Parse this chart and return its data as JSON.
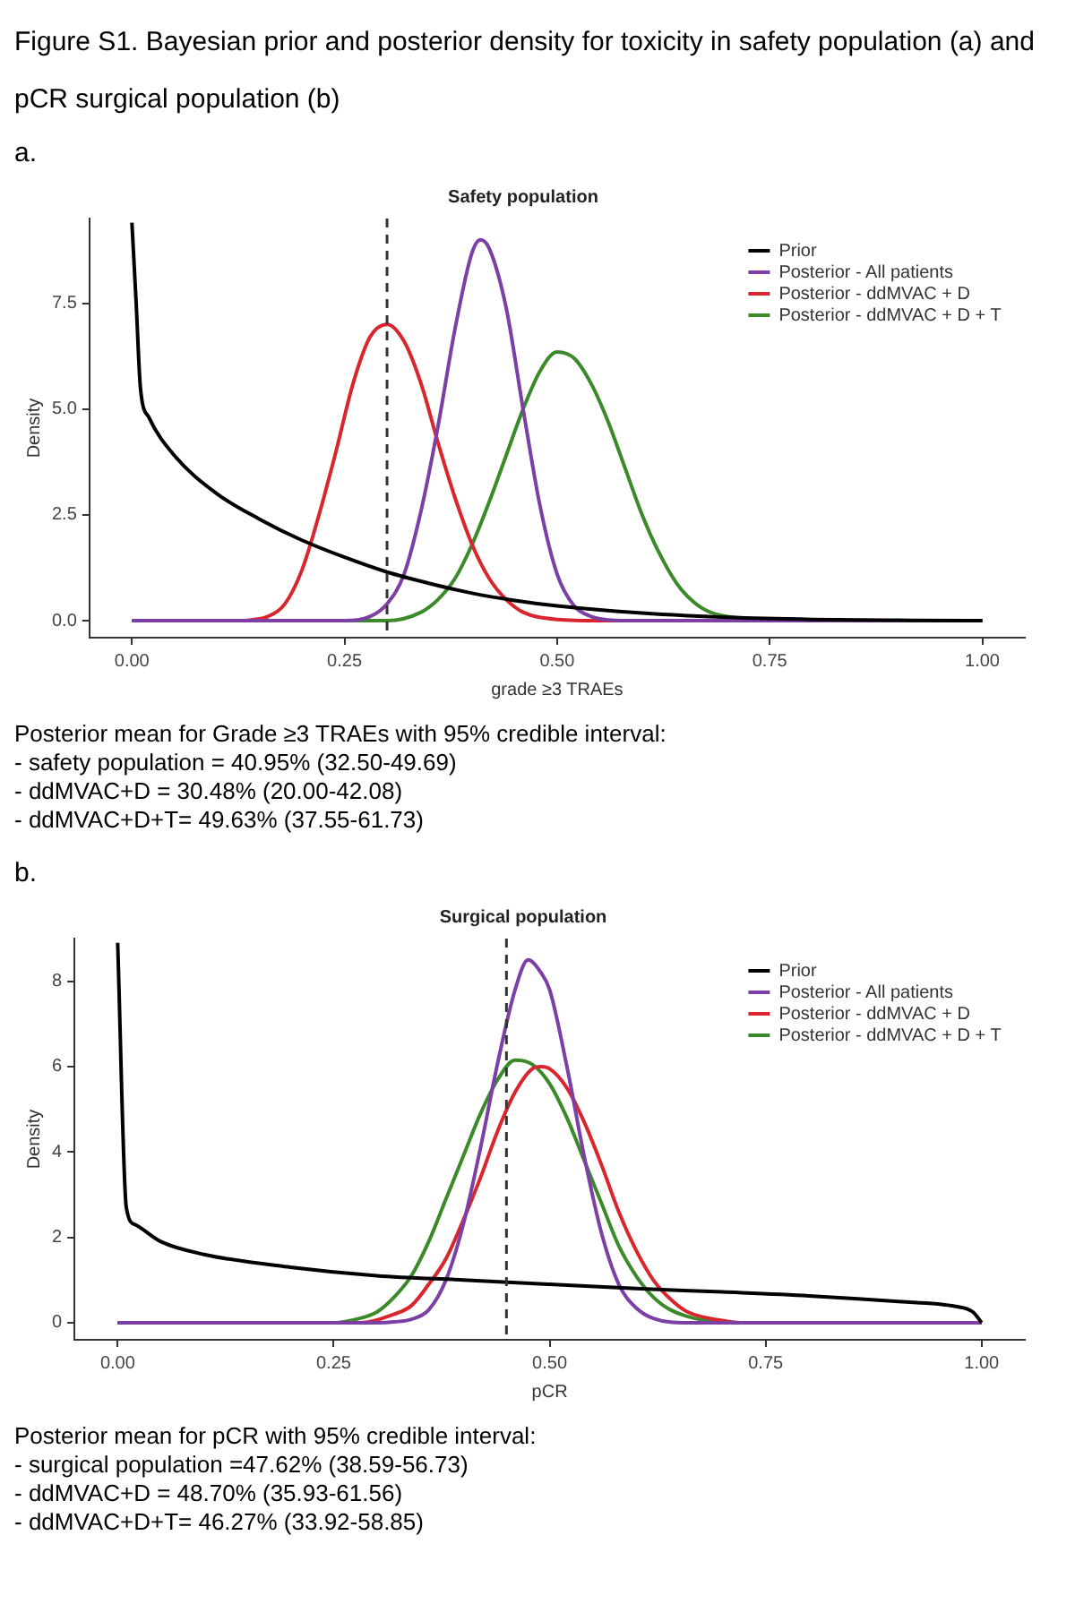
{
  "chart_data": [
    {
      "type": "line",
      "title": "Safety population",
      "xlabel": "grade ≥3 TRAEs",
      "ylabel": "Density",
      "xlim": [
        -0.05,
        1.05
      ],
      "ylim": [
        -0.4,
        9.5
      ],
      "xticks": [
        {
          "value": 0,
          "label": "0.00"
        },
        {
          "value": 0.25,
          "label": "0.25"
        },
        {
          "value": 0.5,
          "label": "0.50"
        },
        {
          "value": 0.75,
          "label": "0.75"
        },
        {
          "value": 1,
          "label": "1.00"
        }
      ],
      "yticks": [
        {
          "value": 0,
          "label": "0.0"
        },
        {
          "value": 2.5,
          "label": "2.5"
        },
        {
          "value": 5,
          "label": "5.0"
        },
        {
          "value": 7.5,
          "label": "7.5"
        }
      ],
      "grid": false,
      "legend": "top right",
      "marker": "none",
      "line_style": "solid",
      "ref_lines": [
        {
          "axis": "x",
          "value": 0.3,
          "line_style": "dashed",
          "color": "#333333"
        }
      ],
      "series": [
        {
          "name": "Prior",
          "color": "#000000",
          "x": [
            0,
            0.005,
            0.01,
            0.02,
            0.05,
            0.1,
            0.15,
            0.2,
            0.25,
            0.3,
            0.35,
            0.4,
            0.45,
            0.5,
            0.6,
            0.7,
            0.8,
            0.9,
            1
          ],
          "values": [
            9.4,
            7.5,
            5.5,
            4.8,
            3.9,
            3.0,
            2.4,
            1.9,
            1.5,
            1.15,
            0.88,
            0.65,
            0.48,
            0.35,
            0.18,
            0.08,
            0.03,
            0.01,
            0
          ]
        },
        {
          "name": "Posterior - All patients",
          "color": "#7b3fa6",
          "x": [
            0,
            0.25,
            0.28,
            0.3,
            0.32,
            0.34,
            0.36,
            0.38,
            0.4,
            0.41,
            0.42,
            0.44,
            0.46,
            0.48,
            0.5,
            0.52,
            0.54,
            0.56,
            0.6,
            1
          ],
          "values": [
            0,
            0,
            0.1,
            0.4,
            1.1,
            2.6,
            4.6,
            6.9,
            8.7,
            9.0,
            8.8,
            7.4,
            5.0,
            2.7,
            1.1,
            0.35,
            0.1,
            0.02,
            0,
            0
          ]
        },
        {
          "name": "Posterior - ddMVAC + D",
          "color": "#d9262e",
          "x": [
            0,
            0.12,
            0.14,
            0.16,
            0.18,
            0.2,
            0.22,
            0.24,
            0.26,
            0.28,
            0.3,
            0.32,
            0.34,
            0.36,
            0.38,
            0.4,
            0.42,
            0.44,
            0.46,
            0.5,
            0.55,
            1
          ],
          "values": [
            0,
            0,
            0.02,
            0.1,
            0.4,
            1.2,
            2.5,
            4.0,
            5.6,
            6.7,
            7.0,
            6.6,
            5.6,
            4.2,
            2.9,
            1.8,
            1.0,
            0.5,
            0.2,
            0.03,
            0,
            0
          ]
        },
        {
          "name": "Posterior - ddMVAC + D + T",
          "color": "#3a8a2a",
          "x": [
            0,
            0.3,
            0.34,
            0.36,
            0.38,
            0.4,
            0.42,
            0.44,
            0.46,
            0.48,
            0.5,
            0.52,
            0.54,
            0.56,
            0.58,
            0.6,
            0.62,
            0.64,
            0.66,
            0.68,
            0.72,
            0.76,
            1
          ],
          "values": [
            0,
            0,
            0.2,
            0.5,
            1.0,
            1.8,
            2.8,
            3.9,
            5.0,
            5.9,
            6.35,
            6.2,
            5.6,
            4.7,
            3.6,
            2.5,
            1.6,
            0.9,
            0.45,
            0.2,
            0.05,
            0,
            0
          ]
        }
      ],
      "annotations": [
        "Figure S1. Bayesian prior and posterior density for toxicity in safety population (a) and pCR surgical population (b)",
        "a.",
        "Posterior mean for Grade ≥3 TRAEs with 95% credible interval:",
        "- safety population = 40.95% (32.50-49.69)",
        "- ddMVAC+D = 30.48% (20.00-42.08)",
        "- ddMVAC+D+T= 49.63% (37.55-61.73)"
      ]
    },
    {
      "type": "line",
      "title": "Surgical population",
      "xlabel": "pCR",
      "ylabel": "Density",
      "xlim": [
        -0.05,
        1.05
      ],
      "ylim": [
        -0.4,
        9
      ],
      "xticks": [
        {
          "value": 0,
          "label": "0.00"
        },
        {
          "value": 0.25,
          "label": "0.25"
        },
        {
          "value": 0.5,
          "label": "0.50"
        },
        {
          "value": 0.75,
          "label": "0.75"
        },
        {
          "value": 1,
          "label": "1.00"
        }
      ],
      "yticks": [
        0,
        2,
        4,
        6,
        8
      ],
      "grid": false,
      "legend": "top right",
      "marker": "none",
      "line_style": "solid",
      "ref_lines": [
        {
          "axis": "x",
          "value": 0.45,
          "line_style": "dashed",
          "color": "#333333"
        }
      ],
      "series": [
        {
          "name": "Prior",
          "color": "#000000",
          "x": [
            0,
            0.01,
            0.02,
            0.05,
            0.1,
            0.2,
            0.3,
            0.4,
            0.5,
            0.6,
            0.7,
            0.8,
            0.9,
            0.97,
            0.99,
            1
          ],
          "values": [
            8.9,
            2.7,
            2.3,
            1.9,
            1.6,
            1.3,
            1.1,
            1.0,
            0.9,
            0.8,
            0.72,
            0.63,
            0.5,
            0.38,
            0.25,
            0
          ]
        },
        {
          "name": "Posterior - All patients",
          "color": "#7b3fa6",
          "x": [
            0,
            0.3,
            0.32,
            0.34,
            0.36,
            0.38,
            0.4,
            0.42,
            0.44,
            0.46,
            0.475,
            0.49,
            0.5,
            0.52,
            0.54,
            0.56,
            0.58,
            0.6,
            0.62,
            0.66,
            1
          ],
          "values": [
            0,
            0,
            0.02,
            0.08,
            0.3,
            1.0,
            2.3,
            4.1,
            6.1,
            7.8,
            8.5,
            8.2,
            7.8,
            6.0,
            3.9,
            2.1,
            0.9,
            0.35,
            0.1,
            0,
            0
          ]
        },
        {
          "name": "Posterior - ddMVAC + D",
          "color": "#d9262e",
          "x": [
            0,
            0.28,
            0.32,
            0.34,
            0.36,
            0.38,
            0.4,
            0.42,
            0.44,
            0.46,
            0.48,
            0.49,
            0.5,
            0.52,
            0.54,
            0.56,
            0.58,
            0.6,
            0.62,
            0.64,
            0.66,
            0.7,
            0.72,
            1
          ],
          "values": [
            0,
            0,
            0.2,
            0.4,
            0.9,
            1.5,
            2.4,
            3.4,
            4.5,
            5.4,
            5.95,
            6.0,
            5.95,
            5.5,
            4.7,
            3.7,
            2.6,
            1.7,
            1.0,
            0.55,
            0.25,
            0.05,
            0,
            0
          ]
        },
        {
          "name": "Posterior - ddMVAC + D + T",
          "color": "#3a8a2a",
          "x": [
            0,
            0.25,
            0.28,
            0.3,
            0.32,
            0.34,
            0.36,
            0.38,
            0.4,
            0.42,
            0.44,
            0.46,
            0.48,
            0.5,
            0.52,
            0.54,
            0.56,
            0.58,
            0.6,
            0.62,
            0.64,
            0.68,
            0.72,
            1
          ],
          "values": [
            0,
            0,
            0.1,
            0.25,
            0.6,
            1.1,
            1.9,
            2.9,
            3.9,
            4.9,
            5.7,
            6.15,
            6.05,
            5.6,
            4.8,
            3.8,
            2.8,
            1.8,
            1.1,
            0.6,
            0.3,
            0.05,
            0,
            0
          ]
        }
      ],
      "annotations": [
        "b.",
        "Posterior mean for pCR with 95% credible interval:",
        "- surgical population =47.62% (38.59-56.73)",
        "- ddMVAC+D = 48.70% (35.93-61.56)",
        "- ddMVAC+D+T= 46.27% (33.92-58.85)"
      ]
    }
  ]
}
